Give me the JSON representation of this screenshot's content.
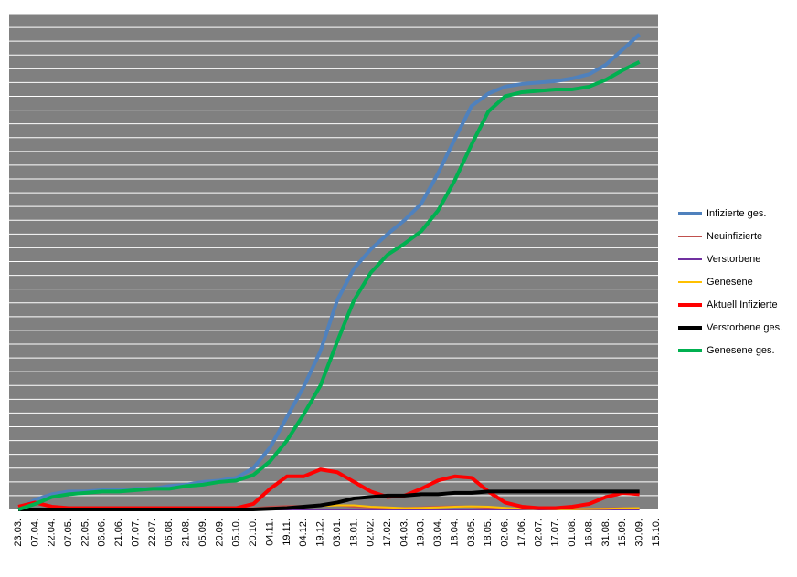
{
  "chart_data": {
    "type": "line",
    "categories": [
      "23.03.",
      "07.04.",
      "22.04.",
      "07.05.",
      "22.05.",
      "06.06.",
      "21.06.",
      "07.07.",
      "22.07.",
      "06.08.",
      "21.08.",
      "05.09.",
      "20.09.",
      "05.10.",
      "20.10.",
      "04.11.",
      "19.11.",
      "04.12.",
      "19.12.",
      "03.01.",
      "18.01.",
      "02.02.",
      "17.02.",
      "04.03.",
      "19.03.",
      "03.04.",
      "18.04.",
      "03.05.",
      "18.05.",
      "02.06.",
      "17.06.",
      "02.07.",
      "17.07.",
      "01.08.",
      "16.08.",
      "31.08.",
      "15.09.",
      "30.09.",
      "15.10."
    ],
    "ylim": [
      0,
      36
    ],
    "grid": true,
    "legend": "right",
    "background": "#808080",
    "series": [
      {
        "name": "Infizierte ges.",
        "color": "#4f81bd",
        "width": 4,
        "values": [
          0,
          0.7,
          1.1,
          1.3,
          1.3,
          1.4,
          1.4,
          1.5,
          1.5,
          1.7,
          1.8,
          2.0,
          2.1,
          2.3,
          3.0,
          4.5,
          6.7,
          8.9,
          11.5,
          15.2,
          17.5,
          18.9,
          20.0,
          21.0,
          22.2,
          24.4,
          26.9,
          29.3,
          30.2,
          30.7,
          30.9,
          31.0,
          31.1,
          31.3,
          31.6,
          32.3,
          33.4,
          34.5,
          null
        ]
      },
      {
        "name": "Neuinfizierte",
        "color": "#c0504d",
        "width": 2,
        "values": [
          0,
          0.05,
          0.02,
          0.01,
          0.01,
          0.01,
          0.01,
          0.01,
          0.01,
          0.02,
          0.02,
          0.02,
          0.03,
          0.05,
          0.1,
          0.2,
          0.25,
          0.25,
          0.3,
          0.3,
          0.2,
          0.15,
          0.1,
          0.12,
          0.15,
          0.2,
          0.22,
          0.2,
          0.12,
          0.05,
          0.03,
          0.02,
          0.02,
          0.03,
          0.05,
          0.08,
          0.1,
          0.1,
          null
        ]
      },
      {
        "name": "Verstorbene",
        "color": "#7030a0",
        "width": 2,
        "values": [
          0,
          0,
          0,
          0,
          0,
          0,
          0,
          0,
          0,
          0,
          0,
          0,
          0,
          0,
          0,
          0,
          0,
          0,
          0,
          0,
          0,
          0,
          0,
          0,
          0,
          0,
          0,
          0,
          0,
          0,
          0,
          0,
          0,
          0,
          0,
          0,
          0,
          0,
          null
        ]
      },
      {
        "name": "Genesene",
        "color": "#ffc000",
        "width": 2,
        "values": [
          0,
          0.05,
          0.05,
          0.02,
          0.01,
          0.01,
          0.01,
          0.01,
          0.01,
          0.01,
          0.02,
          0.02,
          0.02,
          0.03,
          0.05,
          0.1,
          0.15,
          0.2,
          0.25,
          0.3,
          0.3,
          0.2,
          0.15,
          0.1,
          0.12,
          0.15,
          0.2,
          0.22,
          0.2,
          0.12,
          0.05,
          0.03,
          0.02,
          0.02,
          0.03,
          0.05,
          0.08,
          0.1,
          null
        ]
      },
      {
        "name": "Aktuell Infizierte",
        "color": "#ff0000",
        "width": 4,
        "values": [
          0.2,
          0.5,
          0.2,
          0.1,
          0.1,
          0.1,
          0.1,
          0.1,
          0.1,
          0.1,
          0.1,
          0.1,
          0.1,
          0.1,
          0.4,
          1.5,
          2.4,
          2.4,
          2.9,
          2.7,
          2.0,
          1.3,
          0.9,
          1.0,
          1.5,
          2.1,
          2.4,
          2.3,
          1.3,
          0.5,
          0.2,
          0.1,
          0.1,
          0.2,
          0.4,
          0.9,
          1.2,
          1.1,
          null
        ]
      },
      {
        "name": "Verstorbene ges.",
        "color": "#000000",
        "width": 4,
        "values": [
          0,
          0,
          0,
          0,
          0,
          0,
          0,
          0,
          0,
          0,
          0,
          0,
          0,
          0,
          0,
          0.05,
          0.1,
          0.2,
          0.3,
          0.5,
          0.8,
          0.9,
          1.0,
          1.0,
          1.1,
          1.1,
          1.2,
          1.2,
          1.3,
          1.3,
          1.3,
          1.3,
          1.3,
          1.3,
          1.3,
          1.3,
          1.3,
          1.3,
          null
        ]
      },
      {
        "name": "Genesene ges.",
        "color": "#00b050",
        "width": 4,
        "values": [
          0,
          0.4,
          0.9,
          1.1,
          1.2,
          1.3,
          1.3,
          1.4,
          1.5,
          1.5,
          1.7,
          1.8,
          2.0,
          2.1,
          2.5,
          3.5,
          5.0,
          6.9,
          9.0,
          12.2,
          15.2,
          17.2,
          18.5,
          19.3,
          20.2,
          21.7,
          23.9,
          26.5,
          28.9,
          30.0,
          30.3,
          30.4,
          30.5,
          30.5,
          30.7,
          31.2,
          31.9,
          32.5,
          null
        ]
      }
    ]
  }
}
